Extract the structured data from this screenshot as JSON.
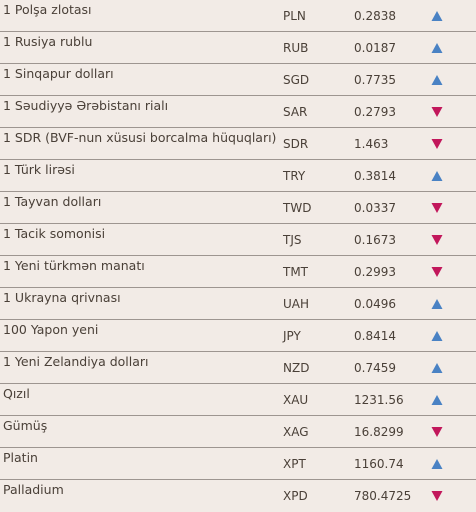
{
  "colors": {
    "up": "#4a82c4",
    "down": "#c2175b",
    "background": "#f2ebe6",
    "text": "#4a4038"
  },
  "rates": [
    {
      "name": "1 Polşa zlotası",
      "code": "PLN",
      "value": "0.2838",
      "trend": "up"
    },
    {
      "name": "1 Rusiya rublu",
      "code": "RUB",
      "value": "0.0187",
      "trend": "up"
    },
    {
      "name": "1 Sinqapur dolları",
      "code": "SGD",
      "value": "0.7735",
      "trend": "up"
    },
    {
      "name": "1 Səudiyyə Ərəbistanı rialı",
      "code": "SAR",
      "value": "0.2793",
      "trend": "down"
    },
    {
      "name": "1 SDR (BVF-nun xüsusi borcalma hüquqları)",
      "code": "SDR",
      "value": "1.463",
      "trend": "down"
    },
    {
      "name": "1 Türk lirəsi",
      "code": "TRY",
      "value": "0.3814",
      "trend": "up"
    },
    {
      "name": "1 Tayvan dolları",
      "code": "TWD",
      "value": "0.0337",
      "trend": "down"
    },
    {
      "name": "1 Tacik somonisi",
      "code": "TJS",
      "value": "0.1673",
      "trend": "down"
    },
    {
      "name": "1 Yeni türkmən manatı",
      "code": "TMT",
      "value": "0.2993",
      "trend": "down"
    },
    {
      "name": "1 Ukrayna qrivnası",
      "code": "UAH",
      "value": "0.0496",
      "trend": "up"
    },
    {
      "name": "100 Yapon yeni",
      "code": "JPY",
      "value": "0.8414",
      "trend": "up"
    },
    {
      "name": "1 Yeni Zelandiya dolları",
      "code": "NZD",
      "value": "0.7459",
      "trend": "up"
    },
    {
      "name": "Qızıl",
      "code": "XAU",
      "value": "1231.56",
      "trend": "up"
    },
    {
      "name": "Gümüş",
      "code": "XAG",
      "value": "16.8299",
      "trend": "down"
    },
    {
      "name": "Platin",
      "code": "XPT",
      "value": "1160.74",
      "trend": "up"
    },
    {
      "name": "Palladium",
      "code": "XPD",
      "value": "780.4725",
      "trend": "down"
    }
  ]
}
